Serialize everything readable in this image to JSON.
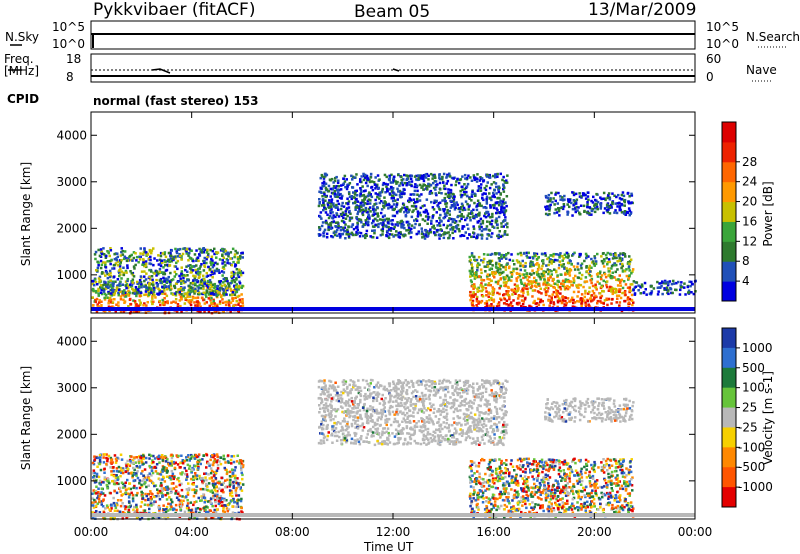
{
  "header": {
    "radar": "Pykkvibaer (fitACF)",
    "beam": "Beam 05",
    "date": "13/Mar/2009"
  },
  "top_panels": {
    "nsky_label": "N.Sky",
    "nsky_scale": [
      "10^5",
      "10^0"
    ],
    "nsearch_label": "N.Search",
    "nsearch_scale": [
      "10^5",
      "10^0"
    ],
    "freq_label": "Freq.",
    "freq_unit": "[MHz]",
    "freq_scale": [
      "18",
      "8"
    ],
    "nave_label": "Nave",
    "nave_scale": [
      "60",
      "0"
    ],
    "cpid_label": "CPID",
    "cpid_text": "normal (fast stereo) 153"
  },
  "colors": {
    "power": [
      "#0000e0",
      "#2050b8",
      "#2e7a2e",
      "#3aa53a",
      "#c8c000",
      "#ff9900",
      "#ff6600",
      "#ee2200",
      "#dd0000"
    ],
    "velocity": [
      "#1c3aa8",
      "#2e6fd0",
      "#1c7a3a",
      "#66c43a",
      "#b8b8b8",
      "#f6d000",
      "#ff8800",
      "#ff5500",
      "#e40000"
    ]
  },
  "chart_data": [
    {
      "type": "heatmap",
      "title": "Power",
      "xlabel": "Time UT",
      "ylabel": "Slant Range [km]",
      "x_ticks": [
        "00:00",
        "04:00",
        "08:00",
        "12:00",
        "16:00",
        "20:00",
        "00:00"
      ],
      "y_ticks": [
        "1000",
        "2000",
        "3000",
        "4000"
      ],
      "ylim": [
        180,
        4500
      ],
      "xlim_hours": [
        0,
        24
      ],
      "colorbar_label": "Power [dB]",
      "colorbar_ticks": [
        "4",
        "8",
        "12",
        "16",
        "20",
        "24",
        "28"
      ],
      "regions": [
        {
          "t": [
            0.0,
            6.0
          ],
          "r": [
            200,
            900
          ],
          "level": "high"
        },
        {
          "t": [
            0.1,
            6.0
          ],
          "r": [
            600,
            1600
          ],
          "level": "mid"
        },
        {
          "t": [
            9.0,
            16.5
          ],
          "r": [
            1800,
            3200
          ],
          "level": "low"
        },
        {
          "t": [
            15.0,
            21.5
          ],
          "r": [
            250,
            1500
          ],
          "level": "high"
        },
        {
          "t": [
            18.0,
            21.5
          ],
          "r": [
            2300,
            2800
          ],
          "level": "low"
        },
        {
          "t": [
            21.5,
            24.0
          ],
          "r": [
            600,
            900
          ],
          "level": "low"
        }
      ]
    },
    {
      "type": "heatmap",
      "title": "Velocity",
      "xlabel": "Time UT",
      "ylabel": "Slant Range [km]",
      "x_ticks": [
        "00:00",
        "04:00",
        "08:00",
        "12:00",
        "16:00",
        "20:00",
        "00:00"
      ],
      "y_ticks": [
        "1000",
        "2000",
        "3000",
        "4000"
      ],
      "ylim": [
        180,
        4500
      ],
      "xlim_hours": [
        0,
        24
      ],
      "colorbar_label": "Velocity [m s-1]",
      "colorbar_ticks": [
        "1000",
        "500",
        "100",
        "25",
        "-25",
        "-100",
        "-500",
        "-1000"
      ],
      "regions": [
        {
          "t": [
            0.0,
            6.0
          ],
          "r": [
            200,
            1600
          ],
          "level": "mixed"
        },
        {
          "t": [
            9.0,
            16.5
          ],
          "r": [
            1800,
            3200
          ],
          "level": "ground"
        },
        {
          "t": [
            15.0,
            21.5
          ],
          "r": [
            250,
            1500
          ],
          "level": "mixed"
        },
        {
          "t": [
            18.0,
            21.5
          ],
          "r": [
            2300,
            2800
          ],
          "level": "ground"
        }
      ]
    }
  ]
}
